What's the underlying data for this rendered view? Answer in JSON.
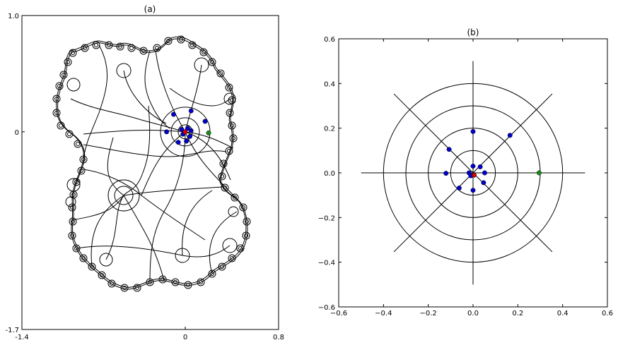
{
  "chart_data": [
    {
      "panel": "a",
      "type": "diagram",
      "title": "(a)",
      "xlim": [
        -1.4,
        0.8
      ],
      "ylim": [
        -1.7,
        1.0
      ],
      "x_ticks": [
        "-1.4",
        "0",
        "0.8"
      ],
      "y_ticks": [
        "1.0",
        "0",
        "-1.7"
      ],
      "red_point": {
        "x": 0.0,
        "y": 0.0
      },
      "green_point": {
        "x": 0.2,
        "y": -0.01
      },
      "blue_points": [
        {
          "x": -0.1,
          "y": 0.15
        },
        {
          "x": 0.05,
          "y": 0.18
        },
        {
          "x": 0.17,
          "y": 0.09
        },
        {
          "x": -0.16,
          "y": 0.0
        },
        {
          "x": -0.06,
          "y": -0.09
        },
        {
          "x": 0.01,
          "y": -0.08
        },
        {
          "x": 0.04,
          "y": -0.04
        },
        {
          "x": 0.05,
          "y": 0.01
        },
        {
          "x": -0.03,
          "y": 0.02
        },
        {
          "x": 0.02,
          "y": 0.03
        },
        {
          "x": -0.02,
          "y": -0.02
        }
      ]
    },
    {
      "panel": "b",
      "type": "scatter",
      "title": "(b)",
      "xlim": [
        -0.6,
        0.6
      ],
      "ylim": [
        -0.6,
        0.6
      ],
      "x_ticks": [
        "−0.6",
        "−0.4",
        "−0.2",
        "0.0",
        "0.2",
        "0.4",
        "0.6"
      ],
      "y_ticks": [
        "0.6",
        "0.4",
        "0.2",
        "0.0",
        "−0.2",
        "−0.4",
        "−0.6"
      ],
      "circle_radii": [
        0.1,
        0.2,
        0.3,
        0.4
      ],
      "ray_length": 0.5,
      "ray_angles_deg": [
        0,
        45,
        90,
        135,
        180,
        225,
        270,
        315
      ],
      "red_point": {
        "x": 0.005,
        "y": -0.01
      },
      "green_point": {
        "x": 0.295,
        "y": 0.0
      },
      "blue_points": [
        {
          "x": 0.0,
          "y": 0.185
        },
        {
          "x": 0.165,
          "y": 0.168
        },
        {
          "x": -0.107,
          "y": 0.105
        },
        {
          "x": -0.121,
          "y": -0.002
        },
        {
          "x": -0.062,
          "y": -0.068
        },
        {
          "x": 0.0,
          "y": -0.078
        },
        {
          "x": 0.047,
          "y": -0.044
        },
        {
          "x": 0.052,
          "y": 0.0
        },
        {
          "x": 0.032,
          "y": 0.027
        },
        {
          "x": 0.0,
          "y": 0.03
        },
        {
          "x": -0.018,
          "y": 0.0
        },
        {
          "x": -0.01,
          "y": -0.013
        }
      ]
    }
  ]
}
